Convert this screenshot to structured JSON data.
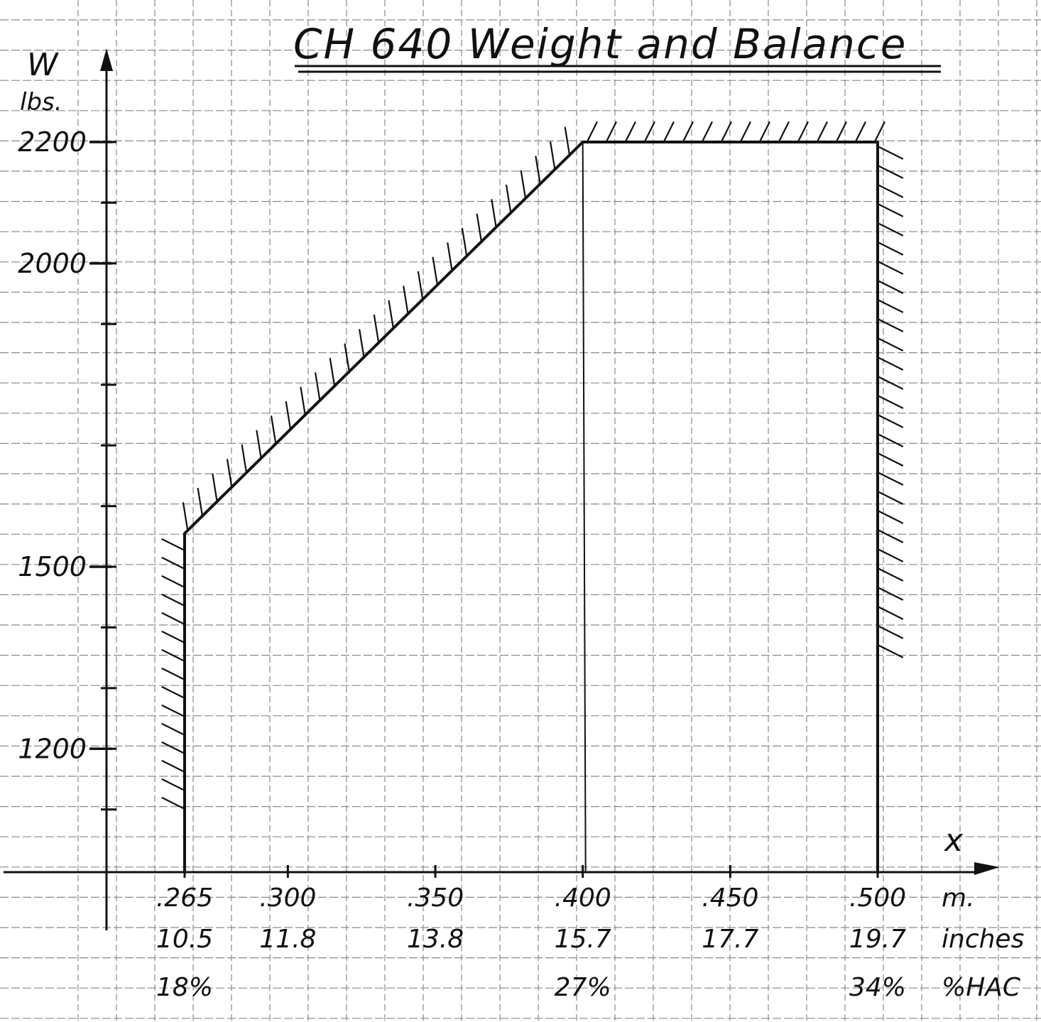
{
  "chart_data": {
    "type": "area",
    "title": "CH 640   Weight and Balance",
    "y_axis": {
      "label_main": "W",
      "label_unit": "lbs.",
      "ticks": [
        {
          "value": 2200,
          "label": "2200"
        },
        {
          "value": 2000,
          "label": "2000"
        },
        {
          "value": 1500,
          "label": "1500"
        },
        {
          "value": 1200,
          "label": "1200"
        }
      ],
      "ylim": [
        1000,
        2300
      ]
    },
    "x_axis": {
      "label_main": "x",
      "xlim": [
        0.215,
        0.525
      ],
      "tick_values": [
        0.265,
        0.3,
        0.35,
        0.4,
        0.45,
        0.5
      ],
      "rows": [
        {
          "name": "m.",
          "labels": [
            ".265",
            ".300",
            ".350",
            ".400",
            ".450",
            ".500"
          ]
        },
        {
          "name": "inches",
          "labels": [
            "10.5",
            "11.8",
            "13.8",
            "15.7",
            "17.7",
            "19.7"
          ]
        },
        {
          "name": "%HAC",
          "labels": [
            "18%",
            "",
            "",
            "27%",
            "",
            "34%"
          ]
        }
      ]
    },
    "envelope": [
      {
        "x": 0.265,
        "y": 1000
      },
      {
        "x": 0.265,
        "y": 1555
      },
      {
        "x": 0.4,
        "y": 2200
      },
      {
        "x": 0.5,
        "y": 2200
      },
      {
        "x": 0.5,
        "y": 1000
      }
    ],
    "reference_lines_x": [
      0.4
    ],
    "grid": true,
    "colors": {
      "ink": "#111111",
      "grid": "#8a8a8a",
      "paper": "#ffffff"
    }
  }
}
